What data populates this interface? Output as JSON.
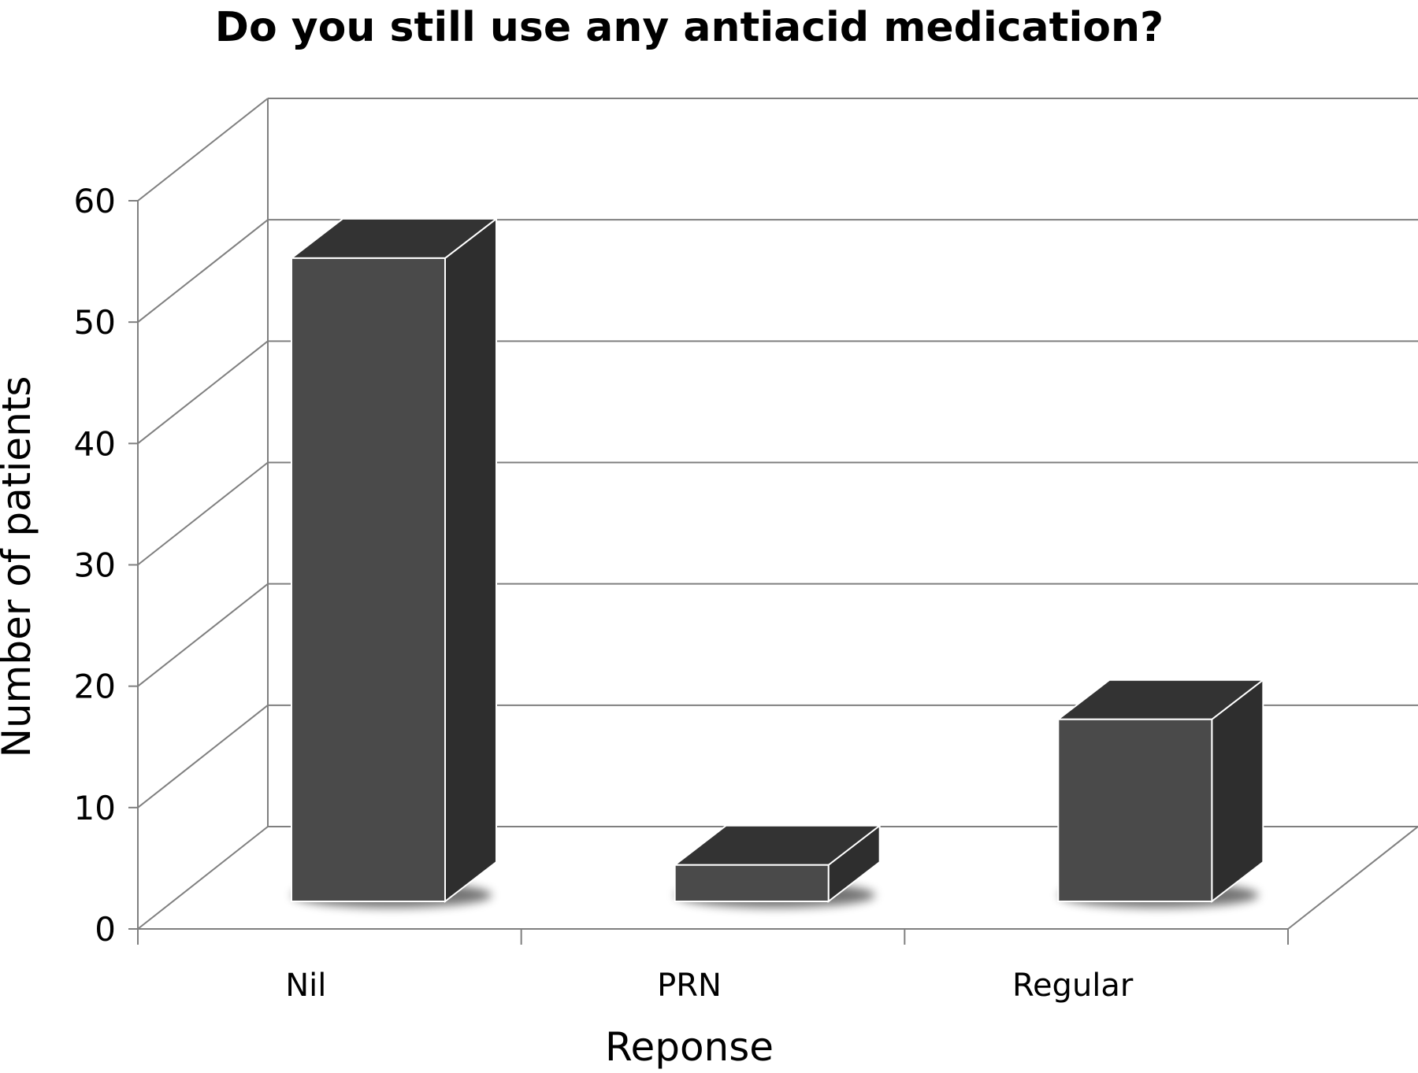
{
  "chart_data": {
    "type": "bar",
    "title": "Do you still use any antiacid medication?",
    "xlabel": "Reponse",
    "ylabel": "Number of patients",
    "categories": [
      "Nil",
      "PRN",
      "Regular"
    ],
    "values": [
      53,
      3,
      15
    ],
    "ylim": [
      0,
      60
    ],
    "yticks": [
      "0",
      "10",
      "20",
      "30",
      "40",
      "50",
      "60"
    ],
    "grid": true,
    "style": "3d-column",
    "colors": {
      "bar_front": "#4a4a4a",
      "bar_side": "#2e2e2e",
      "bar_top": "#333333",
      "grid": "#7f7f7f"
    }
  }
}
